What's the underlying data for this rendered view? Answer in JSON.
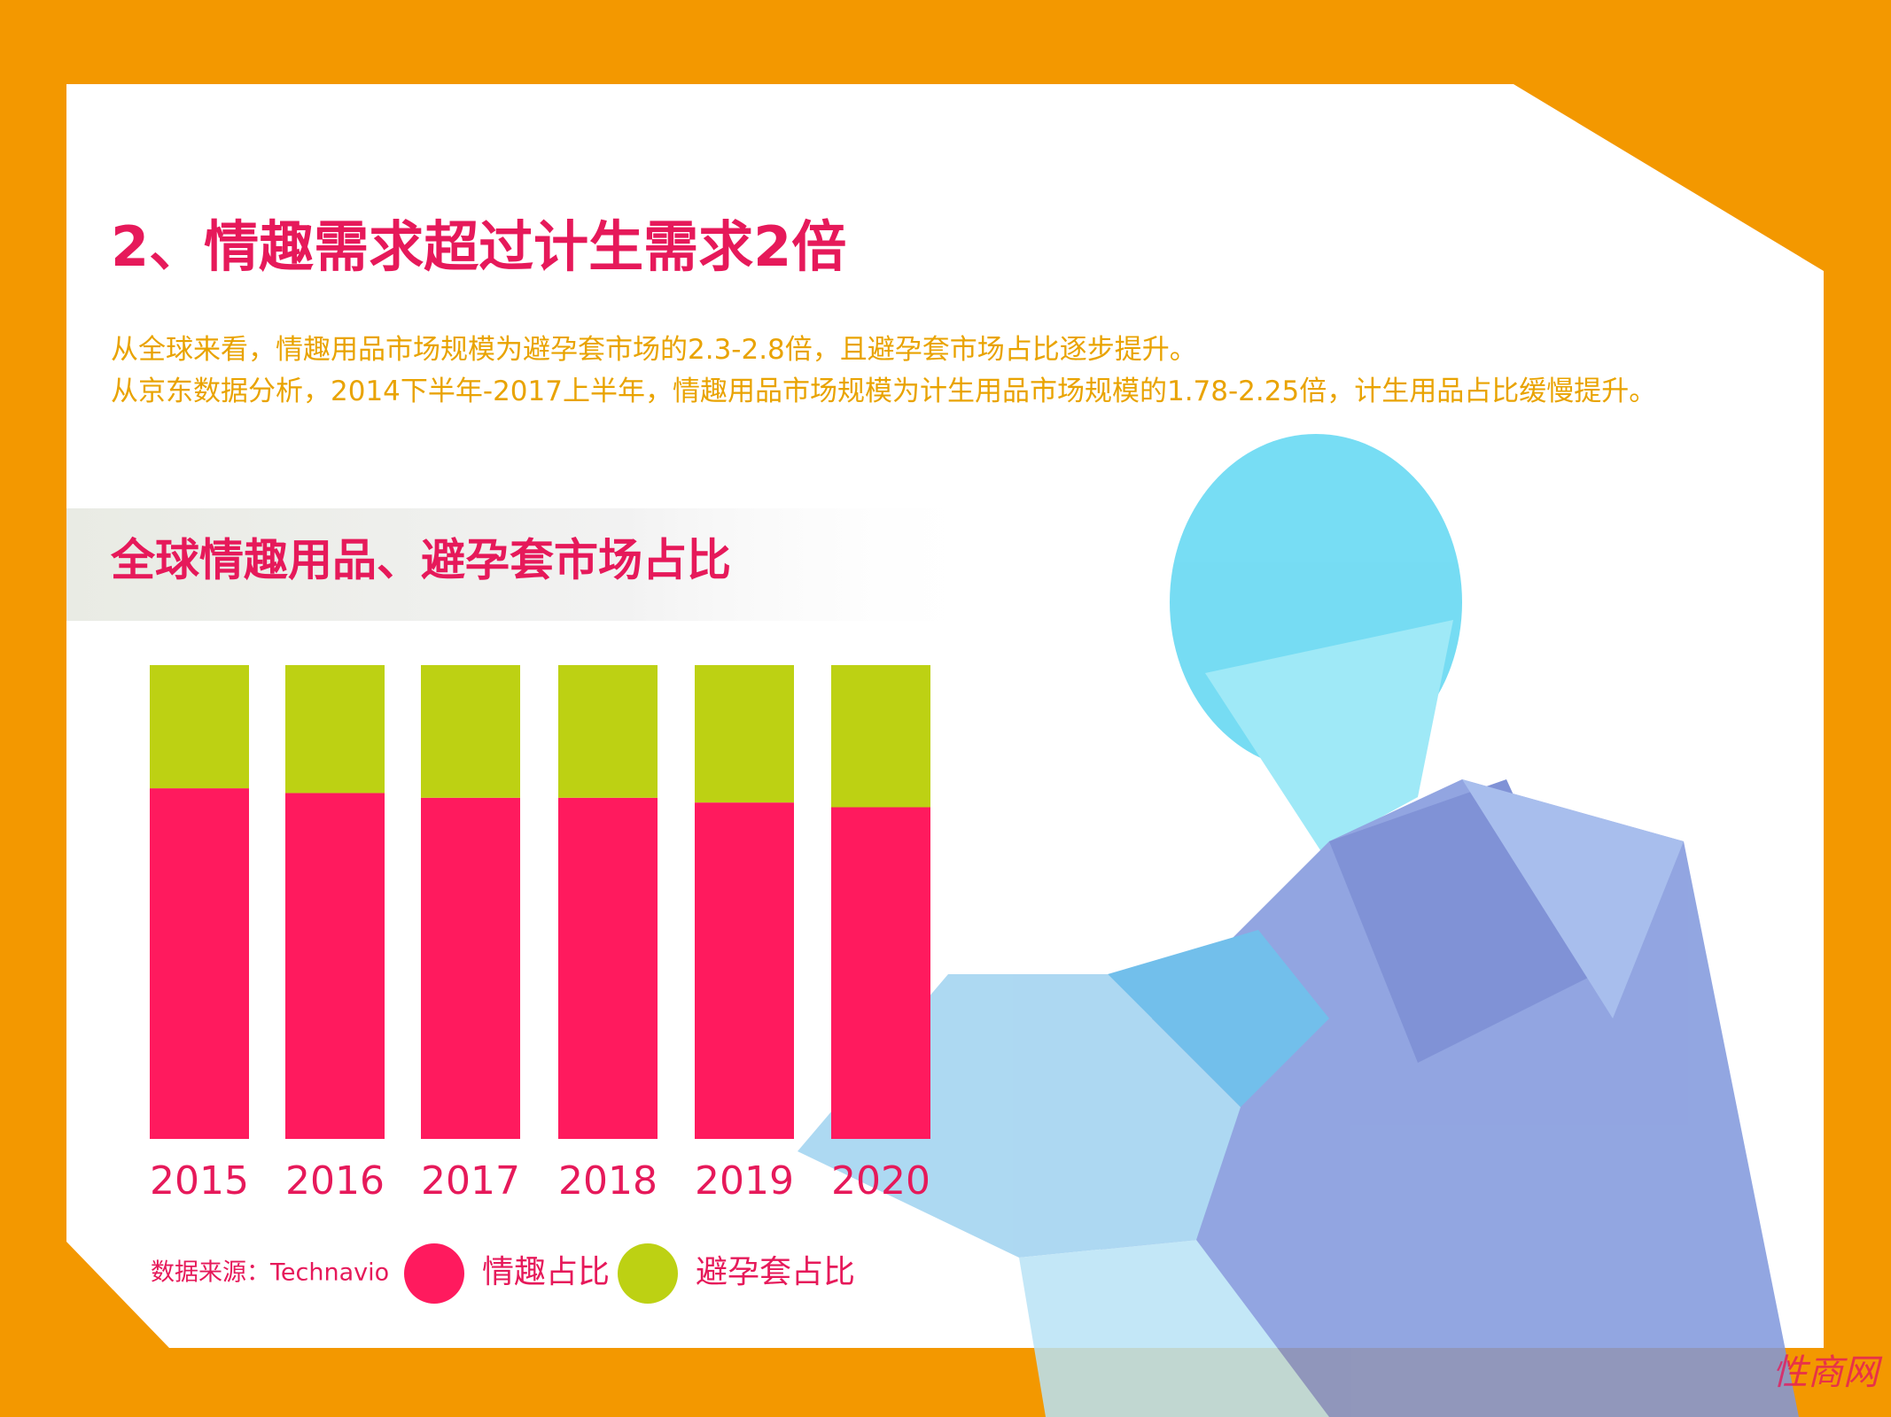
{
  "header": {
    "title": "2、情趣需求超过计生需求2倍",
    "paragraphs": [
      "从全球来看，情趣用品市场规模为避孕套市场的2.3-2.8倍，且避孕套市场占比逐步提升。",
      "从京东数据分析，2014下半年-2017上半年，情趣用品市场规模为计生用品市场规模的1.78-2.25倍，计生用品占比缓慢提升。"
    ]
  },
  "chart_data": {
    "type": "stacked_bar",
    "title": "全球情趣用品、避孕套市场占比",
    "categories": [
      "2015",
      "2016",
      "2017",
      "2018",
      "2019",
      "2020"
    ],
    "series": [
      {
        "name": "情趣占比",
        "color": "#ff1a5e",
        "values": [
          74,
          73,
          72,
          72,
          71,
          70
        ]
      },
      {
        "name": "避孕套占比",
        "color": "#bdd113",
        "values": [
          26,
          27,
          28,
          28,
          29,
          30
        ]
      }
    ],
    "source": "数据来源：Technavio"
  },
  "watermark": "性商网"
}
